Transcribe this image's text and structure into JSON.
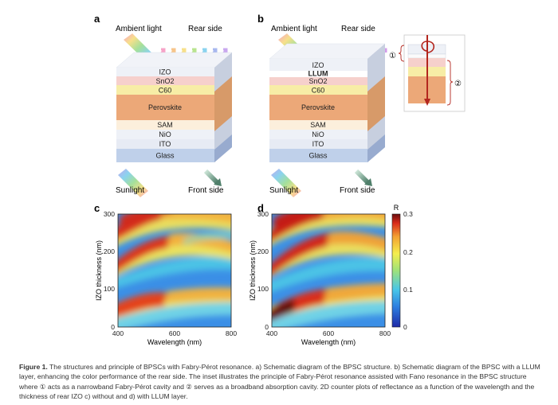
{
  "panels": {
    "a": {
      "letter": "a",
      "ambient": "Ambient light",
      "rear": "Rear side",
      "sunlight": "Sunlight",
      "front": "Front side",
      "layers": [
        "IZO",
        "SnO2",
        "C60",
        "Perovskite",
        "SAM",
        "NiO",
        "ITO",
        "Glass"
      ]
    },
    "b": {
      "letter": "b",
      "ambient": "Ambient light",
      "rear": "Rear side",
      "sunlight": "Sunlight",
      "front": "Front side",
      "layers": [
        "IZO",
        "LLUM",
        "SnO2",
        "C60",
        "Perovskite",
        "SAM",
        "NiO",
        "ITO",
        "Glass"
      ],
      "inset_markers": [
        "①",
        "②"
      ]
    },
    "c": {
      "letter": "c"
    },
    "d": {
      "letter": "d"
    }
  },
  "colors": {
    "izo": "#eef1f7",
    "llum": "#ffffff",
    "sno2": "#f6d0cc",
    "c60": "#f7eda6",
    "perovskite": "#eca878",
    "sam": "#fcefdc",
    "nio": "#eef1f7",
    "ito": "#e7ebf4",
    "glass": "#bfd0ea",
    "arrow_red": "#b3261e"
  },
  "chart_data": [
    {
      "panel": "c",
      "type": "heatmap",
      "title": "",
      "xlabel": "Wavelength (nm)",
      "ylabel": "IZO thickness (nm)",
      "xlim": [
        400,
        800
      ],
      "ylim": [
        0,
        300
      ],
      "xticks": [
        400,
        600,
        800
      ],
      "yticks": [
        0,
        100,
        200,
        300
      ],
      "colorbar": null,
      "description_bands": "high-R diagonal bands (Fabry-Perot orders) rising with wavelength"
    },
    {
      "panel": "d",
      "type": "heatmap",
      "title": "",
      "xlabel": "Wavelength (nm)",
      "ylabel": "IZO thickness (nm)",
      "xlim": [
        400,
        800
      ],
      "ylim": [
        0,
        300
      ],
      "xticks": [
        400,
        600,
        800
      ],
      "yticks": [
        0,
        100,
        200,
        300
      ],
      "colorbar": {
        "label": "R",
        "range": [
          0,
          0.3
        ],
        "ticks": [
          0,
          0.1,
          0.2,
          0.3
        ]
      }
    }
  ],
  "caption": {
    "label": "Figure 1.",
    "text": " The structures and principle of BPSCs with Fabry-Pérot resonance. a) Schematic diagram of the BPSC structure. b) Schematic diagram of the BPSC with a LLUM layer, enhancing the color performance of the rear side. The inset illustrates the principle of Fabry-Pérot resonance assisted with Fano resonance in the BPSC structure where ① acts as a narrowband Fabry-Pérot cavity and ② serves as a broadband absorption cavity. 2D counter plots of reflectance as a function of the wavelength and the thickness of rear IZO c) without and d) with LLUM layer."
  }
}
